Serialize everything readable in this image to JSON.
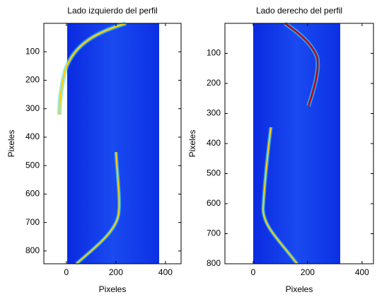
{
  "chart_data": [
    {
      "type": "image",
      "title": "Lado izquierdo del perfil",
      "xlabel": "Pixeles",
      "ylabel": "Pixeles",
      "xlim": [
        -91,
        463
      ],
      "ylim": [
        0,
        845
      ],
      "xticks": [
        0,
        200,
        400
      ],
      "yticks": [
        100,
        200,
        300,
        400,
        500,
        600,
        700,
        800
      ]
    },
    {
      "type": "image",
      "title": "Lado derecho del perfil",
      "xlabel": "Pixeles",
      "ylabel": "Pixeles",
      "xlim": [
        -104,
        442
      ],
      "ylim": [
        0,
        800
      ],
      "xticks": [
        0,
        200,
        400
      ],
      "yticks": [
        100,
        200,
        300,
        400,
        500,
        600,
        700,
        800
      ]
    }
  ]
}
